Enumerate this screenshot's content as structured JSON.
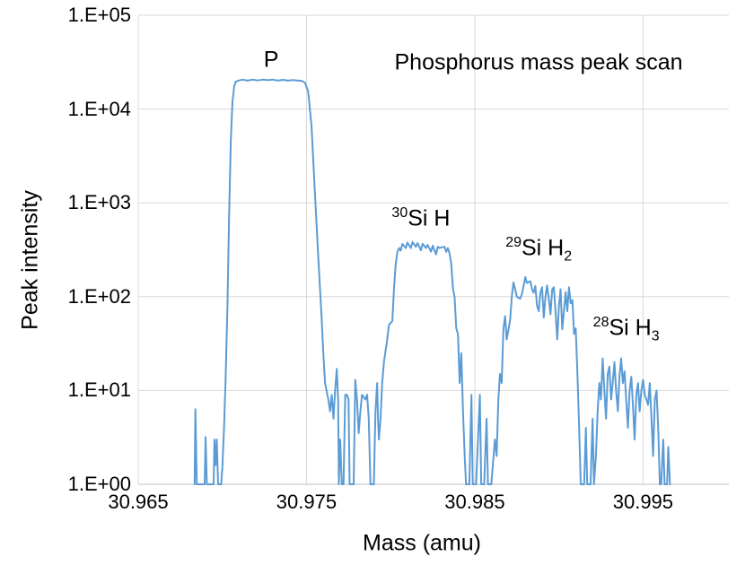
{
  "chart_data": {
    "type": "line",
    "title": "Phosphorus mass peak scan",
    "xlabel": "Mass (amu)",
    "ylabel": "Peak intensity",
    "yscale": "log",
    "grid": true,
    "legend": "none",
    "xlim": [
      30.965,
      31.0001
    ],
    "ylim": [
      1,
      100000
    ],
    "x_ticks": [
      {
        "value": 30.965,
        "label": "30.965"
      },
      {
        "value": 30.975,
        "label": "30.975"
      },
      {
        "value": 30.985,
        "label": "30.985"
      },
      {
        "value": 30.995,
        "label": "30.995"
      }
    ],
    "y_ticks": [
      {
        "value": 1,
        "label": "1.E+00"
      },
      {
        "value": 10,
        "label": "1.E+01"
      },
      {
        "value": 100,
        "label": "1.E+02"
      },
      {
        "value": 1000,
        "label": "1.E+03"
      },
      {
        "value": 10000,
        "label": "1.E+04"
      },
      {
        "value": 100000,
        "label": "1.E+05"
      }
    ],
    "colors": {
      "line": "#5B9BD5",
      "grid": "#D9D9D9",
      "axis": "#BFBFBF",
      "text": "#000000",
      "background": "#FFFFFF"
    },
    "annotations": [
      {
        "sup": "",
        "text": "P",
        "sub": "",
        "x": 30.9729,
        "y": 33000
      },
      {
        "sup": "30",
        "text": "Si H",
        "sub": "",
        "x": 30.9818,
        "y": 680
      },
      {
        "sup": "29",
        "text": "Si H",
        "sub": "2",
        "x": 30.9888,
        "y": 330
      },
      {
        "sup": "28",
        "text": "Si H",
        "sub": "3",
        "x": 30.994,
        "y": 46
      }
    ],
    "series": [
      {
        "name": "Peak intensity",
        "points": [
          [
            30.96835,
            1
          ],
          [
            30.9684,
            6.3
          ],
          [
            30.96848,
            1
          ],
          [
            30.96895,
            1
          ],
          [
            30.969,
            3.2
          ],
          [
            30.96908,
            1
          ],
          [
            30.96948,
            1
          ],
          [
            30.96953,
            3.0
          ],
          [
            30.9696,
            1.6
          ],
          [
            30.96967,
            3.0
          ],
          [
            30.96975,
            1
          ],
          [
            30.96993,
            1
          ],
          [
            30.97,
            1.5
          ],
          [
            30.9701,
            4
          ],
          [
            30.9702,
            15
          ],
          [
            30.9703,
            80
          ],
          [
            30.9704,
            700
          ],
          [
            30.9705,
            4500
          ],
          [
            30.9706,
            12000
          ],
          [
            30.9707,
            17500
          ],
          [
            30.9708,
            19600
          ],
          [
            30.971,
            20200
          ],
          [
            30.9712,
            20600
          ],
          [
            30.9715,
            20100
          ],
          [
            30.9718,
            20600
          ],
          [
            30.9721,
            20200
          ],
          [
            30.9724,
            20600
          ],
          [
            30.9727,
            20300
          ],
          [
            30.973,
            20600
          ],
          [
            30.9733,
            20100
          ],
          [
            30.9736,
            20500
          ],
          [
            30.9739,
            20100
          ],
          [
            30.9742,
            20400
          ],
          [
            30.9745,
            20100
          ],
          [
            30.9747,
            20000
          ],
          [
            30.9749,
            19200
          ],
          [
            30.9751,
            15500
          ],
          [
            30.9753,
            6500
          ],
          [
            30.9755,
            1300
          ],
          [
            30.9757,
            260
          ],
          [
            30.9759,
            60
          ],
          [
            30.976,
            25
          ],
          [
            30.9761,
            12
          ],
          [
            30.9763,
            8
          ],
          [
            30.9764,
            6
          ],
          [
            30.9765,
            9
          ],
          [
            30.9766,
            5
          ],
          [
            30.9767,
            10
          ],
          [
            30.9768,
            17
          ],
          [
            30.97688,
            8
          ],
          [
            30.97692,
            1
          ],
          [
            30.977,
            3
          ],
          [
            30.9771,
            1
          ],
          [
            30.9772,
            1
          ],
          [
            30.9773,
            9
          ],
          [
            30.9774,
            9
          ],
          [
            30.9775,
            8
          ],
          [
            30.97756,
            1
          ],
          [
            30.97765,
            1
          ],
          [
            30.9778,
            1
          ],
          [
            30.9779,
            13
          ],
          [
            30.978,
            8
          ],
          [
            30.9781,
            3.5
          ],
          [
            30.9782,
            6
          ],
          [
            30.9783,
            9
          ],
          [
            30.9785,
            8
          ],
          [
            30.9786,
            9
          ],
          [
            30.9787,
            5
          ],
          [
            30.9788,
            1
          ],
          [
            30.979,
            1
          ],
          [
            30.9791,
            6
          ],
          [
            30.9792,
            12
          ],
          [
            30.97925,
            5
          ],
          [
            30.9793,
            3
          ],
          [
            30.9794,
            5
          ],
          [
            30.9795,
            12
          ],
          [
            30.9796,
            20
          ],
          [
            30.9798,
            35
          ],
          [
            30.9799,
            50
          ],
          [
            30.9801,
            55
          ],
          [
            30.9802,
            120
          ],
          [
            30.9803,
            220
          ],
          [
            30.9804,
            300
          ],
          [
            30.9805,
            330
          ],
          [
            30.9806,
            310
          ],
          [
            30.9807,
            365
          ],
          [
            30.9809,
            330
          ],
          [
            30.981,
            378
          ],
          [
            30.9812,
            330
          ],
          [
            30.9813,
            382
          ],
          [
            30.9815,
            340
          ],
          [
            30.9816,
            372
          ],
          [
            30.9818,
            312
          ],
          [
            30.9819,
            366
          ],
          [
            30.9821,
            330
          ],
          [
            30.9822,
            356
          ],
          [
            30.9824,
            302
          ],
          [
            30.9825,
            350
          ],
          [
            30.9827,
            282
          ],
          [
            30.9828,
            340
          ],
          [
            30.9829,
            330
          ],
          [
            30.983,
            335
          ],
          [
            30.9832,
            340
          ],
          [
            30.9833,
            300
          ],
          [
            30.9834,
            330
          ],
          [
            30.9835,
            290
          ],
          [
            30.9836,
            225
          ],
          [
            30.9837,
            122
          ],
          [
            30.9838,
            100
          ],
          [
            30.9839,
            46
          ],
          [
            30.984,
            40
          ],
          [
            30.9841,
            12
          ],
          [
            30.9842,
            25
          ],
          [
            30.9843,
            6
          ],
          [
            30.9844,
            2
          ],
          [
            30.98448,
            1
          ],
          [
            30.98468,
            1
          ],
          [
            30.9848,
            9
          ],
          [
            30.98488,
            1
          ],
          [
            30.98508,
            1
          ],
          [
            30.9853,
            9
          ],
          [
            30.98538,
            1
          ],
          [
            30.98556,
            1
          ],
          [
            30.9857,
            5
          ],
          [
            30.98578,
            1
          ],
          [
            30.98598,
            1
          ],
          [
            30.9862,
            3
          ],
          [
            30.9863,
            2
          ],
          [
            30.9864,
            8
          ],
          [
            30.9865,
            15
          ],
          [
            30.9866,
            12
          ],
          [
            30.9867,
            45
          ],
          [
            30.9868,
            62
          ],
          [
            30.9869,
            35
          ],
          [
            30.9871,
            56
          ],
          [
            30.9872,
            100
          ],
          [
            30.9873,
            142
          ],
          [
            30.9874,
            120
          ],
          [
            30.9875,
            100
          ],
          [
            30.9877,
            95
          ],
          [
            30.9878,
            106
          ],
          [
            30.9879,
            130
          ],
          [
            30.988,
            162
          ],
          [
            30.9881,
            140
          ],
          [
            30.9883,
            146
          ],
          [
            30.9884,
            120
          ],
          [
            30.9885,
            110
          ],
          [
            30.9886,
            130
          ],
          [
            30.9887,
            80
          ],
          [
            30.9888,
            70
          ],
          [
            30.9889,
            110
          ],
          [
            30.989,
            126
          ],
          [
            30.9891,
            60
          ],
          [
            30.9892,
            100
          ],
          [
            30.9893,
            132
          ],
          [
            30.9894,
            95
          ],
          [
            30.9895,
            65
          ],
          [
            30.9896,
            120
          ],
          [
            30.9897,
            126
          ],
          [
            30.9898,
            70
          ],
          [
            30.9899,
            35
          ],
          [
            30.99,
            80
          ],
          [
            30.9901,
            120
          ],
          [
            30.9902,
            45
          ],
          [
            30.9904,
            112
          ],
          [
            30.9905,
            70
          ],
          [
            30.9906,
            126
          ],
          [
            30.9907,
            85
          ],
          [
            30.9908,
            92
          ],
          [
            30.9909,
            40
          ],
          [
            30.991,
            46
          ],
          [
            30.9911,
            15
          ],
          [
            30.9912,
            4
          ],
          [
            30.9913,
            1
          ],
          [
            30.9915,
            1
          ],
          [
            30.9916,
            4
          ],
          [
            30.99168,
            1
          ],
          [
            30.99188,
            1
          ],
          [
            30.992,
            5
          ],
          [
            30.99208,
            1
          ],
          [
            30.9922,
            2
          ],
          [
            30.9923,
            6
          ],
          [
            30.9924,
            12
          ],
          [
            30.9925,
            8
          ],
          [
            30.9926,
            22
          ],
          [
            30.9927,
            10
          ],
          [
            30.9928,
            5
          ],
          [
            30.9929,
            15
          ],
          [
            30.993,
            18
          ],
          [
            30.9931,
            8
          ],
          [
            30.9932,
            12
          ],
          [
            30.9933,
            20
          ],
          [
            30.9934,
            10
          ],
          [
            30.9935,
            6
          ],
          [
            30.9936,
            14
          ],
          [
            30.9937,
            22
          ],
          [
            30.9938,
            12
          ],
          [
            30.9939,
            16
          ],
          [
            30.994,
            8
          ],
          [
            30.9941,
            4
          ],
          [
            30.9942,
            10
          ],
          [
            30.9943,
            14
          ],
          [
            30.9944,
            7
          ],
          [
            30.9945,
            3
          ],
          [
            30.9946,
            9
          ],
          [
            30.9947,
            12
          ],
          [
            30.9948,
            6
          ],
          [
            30.9949,
            10
          ],
          [
            30.995,
            13
          ],
          [
            30.9951,
            9
          ],
          [
            30.9952,
            8
          ],
          [
            30.9953,
            7
          ],
          [
            30.9954,
            12
          ],
          [
            30.9955,
            5
          ],
          [
            30.9956,
            2
          ],
          [
            30.9957,
            8
          ],
          [
            30.9958,
            10
          ],
          [
            30.9959,
            4
          ],
          [
            30.996,
            1
          ],
          [
            30.99608,
            1
          ],
          [
            30.9962,
            3
          ],
          [
            30.99628,
            1
          ],
          [
            30.99643,
            1
          ],
          [
            30.9965,
            2.5
          ],
          [
            30.9966,
            1
          ]
        ]
      }
    ]
  }
}
